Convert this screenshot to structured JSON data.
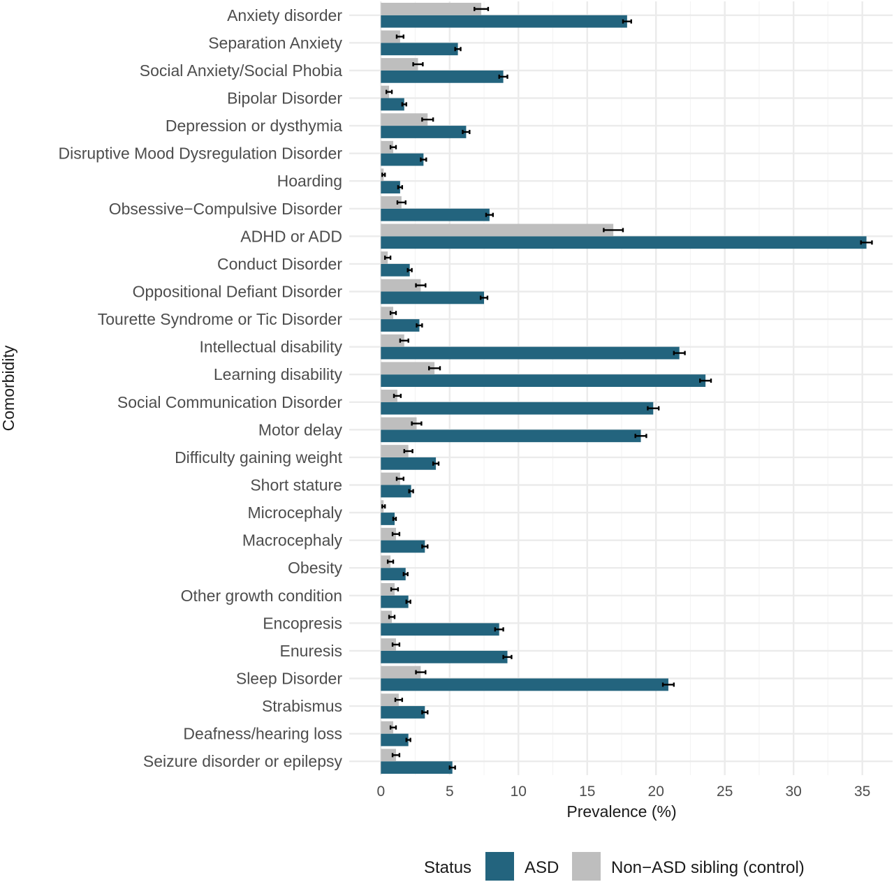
{
  "chart_data": {
    "type": "bar",
    "orientation": "horizontal",
    "xlabel": "Prevalence (%)",
    "ylabel": "Comorbidity",
    "xlim": [
      -2.3,
      37.2
    ],
    "xticks": [
      0,
      5,
      10,
      15,
      20,
      25,
      30,
      35
    ],
    "grid": true,
    "legend_position": "bottom",
    "legend_title": "Status",
    "categories": [
      "Anxiety disorder",
      "Separation Anxiety",
      "Social Anxiety/Social Phobia",
      "Bipolar Disorder",
      "Depression or dysthymia",
      "Disruptive Mood Dysregulation Disorder",
      "Hoarding",
      "Obsessive−Compulsive Disorder",
      "ADHD or ADD",
      "Conduct Disorder",
      "Oppositional Defiant Disorder",
      "Tourette Syndrome or Tic Disorder",
      "Intellectual disability",
      "Learning disability",
      "Social Communication Disorder",
      "Motor delay",
      "Difficulty gaining weight",
      "Short stature",
      "Microcephaly",
      "Macrocephaly",
      "Obesity",
      "Other growth condition",
      "Encopresis",
      "Enuresis",
      "Sleep Disorder",
      "Strabismus",
      "Deafness/hearing loss",
      "Seizure disorder or epilepsy"
    ],
    "series": [
      {
        "name": "ASD",
        "color": "#23647e",
        "values": [
          17.9,
          5.6,
          8.9,
          1.7,
          6.2,
          3.1,
          1.4,
          7.9,
          35.3,
          2.1,
          7.5,
          2.8,
          21.7,
          23.6,
          19.8,
          18.9,
          4.0,
          2.2,
          1.0,
          3.2,
          1.8,
          2.0,
          8.6,
          9.2,
          20.9,
          3.2,
          2.0,
          5.2
        ],
        "error": [
          0.3,
          0.2,
          0.3,
          0.15,
          0.25,
          0.2,
          0.15,
          0.25,
          0.4,
          0.15,
          0.25,
          0.2,
          0.4,
          0.4,
          0.4,
          0.4,
          0.2,
          0.15,
          0.1,
          0.2,
          0.15,
          0.15,
          0.3,
          0.3,
          0.4,
          0.2,
          0.15,
          0.2
        ]
      },
      {
        "name": "Non−ASD sibling (control)",
        "color": "#bebebe",
        "values": [
          7.3,
          1.4,
          2.7,
          0.6,
          3.4,
          0.9,
          0.2,
          1.5,
          16.9,
          0.5,
          2.9,
          0.9,
          1.7,
          3.9,
          1.2,
          2.6,
          2.0,
          1.4,
          0.2,
          1.1,
          0.7,
          1.0,
          0.8,
          1.1,
          2.9,
          1.3,
          0.9,
          1.1
        ],
        "error": [
          0.5,
          0.25,
          0.35,
          0.2,
          0.4,
          0.2,
          0.1,
          0.3,
          0.7,
          0.2,
          0.35,
          0.2,
          0.3,
          0.4,
          0.25,
          0.35,
          0.3,
          0.25,
          0.1,
          0.25,
          0.2,
          0.25,
          0.2,
          0.25,
          0.35,
          0.25,
          0.2,
          0.25
        ]
      }
    ]
  }
}
